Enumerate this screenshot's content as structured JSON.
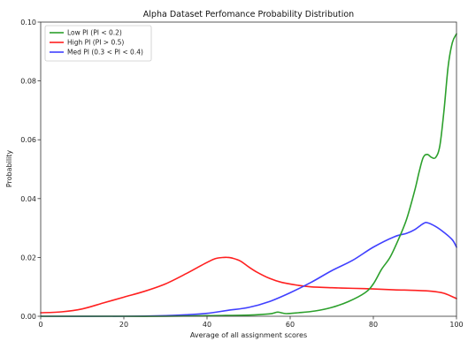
{
  "chart_data": {
    "type": "line",
    "title": "Alpha Dataset Perfomance Probability Distribution",
    "xlabel": "Average of all assignment scores",
    "ylabel": "Probability",
    "xlim": [
      0,
      100
    ],
    "ylim": [
      0,
      0.1
    ],
    "xticks": [
      0,
      20,
      40,
      60,
      80,
      100
    ],
    "xtick_labels": [
      "0",
      "20",
      "40",
      "60",
      "80",
      "100"
    ],
    "yticks": [
      0,
      0.02,
      0.04,
      0.06,
      0.08,
      0.1
    ],
    "ytick_labels": [
      "0.00",
      "0.02",
      "0.04",
      "0.06",
      "0.08",
      "0.10"
    ],
    "grid": false,
    "legend": "top-left",
    "series": [
      {
        "name": "Low PI (PI < 0.2)",
        "color": "#2ca02c",
        "x": [
          0,
          10,
          20,
          30,
          40,
          50,
          55,
          57,
          59,
          62,
          66,
          70,
          74,
          78,
          80,
          82,
          84,
          86,
          88,
          90,
          91,
          92,
          93,
          94,
          95,
          96,
          97,
          98,
          99,
          100
        ],
        "y": [
          0.0,
          0.0,
          0.0,
          0.0,
          0.0002,
          0.0004,
          0.0008,
          0.0014,
          0.0009,
          0.0012,
          0.0018,
          0.003,
          0.005,
          0.008,
          0.011,
          0.016,
          0.02,
          0.026,
          0.033,
          0.043,
          0.049,
          0.054,
          0.055,
          0.054,
          0.054,
          0.058,
          0.07,
          0.085,
          0.093,
          0.096
        ]
      },
      {
        "name": "High PI (PI > 0.5)",
        "color": "#ff2020",
        "x": [
          0,
          5,
          10,
          15,
          20,
          25,
          30,
          35,
          38,
          40,
          42,
          44,
          45,
          46,
          48,
          50,
          52,
          55,
          58,
          62,
          65,
          70,
          75,
          80,
          85,
          90,
          94,
          97,
          100
        ],
        "y": [
          0.0012,
          0.0015,
          0.0025,
          0.0045,
          0.0065,
          0.0085,
          0.011,
          0.0145,
          0.0168,
          0.0183,
          0.0196,
          0.02,
          0.02,
          0.0198,
          0.0188,
          0.0168,
          0.015,
          0.0129,
          0.0115,
          0.0105,
          0.01,
          0.0097,
          0.0095,
          0.0093,
          0.009,
          0.0088,
          0.0085,
          0.0078,
          0.006
        ]
      },
      {
        "name": "Med PI (0.3 < PI < 0.4)",
        "color": "#4040ff",
        "x": [
          0,
          20,
          30,
          35,
          40,
          45,
          50,
          55,
          60,
          65,
          70,
          75,
          80,
          85,
          88,
          90,
          92,
          93,
          95,
          97,
          99,
          100
        ],
        "y": [
          0.0,
          0.0,
          0.0002,
          0.0005,
          0.001,
          0.002,
          0.003,
          0.005,
          0.008,
          0.0115,
          0.0155,
          0.019,
          0.0235,
          0.027,
          0.0282,
          0.0295,
          0.0315,
          0.0318,
          0.0305,
          0.0285,
          0.026,
          0.0235
        ]
      }
    ]
  }
}
